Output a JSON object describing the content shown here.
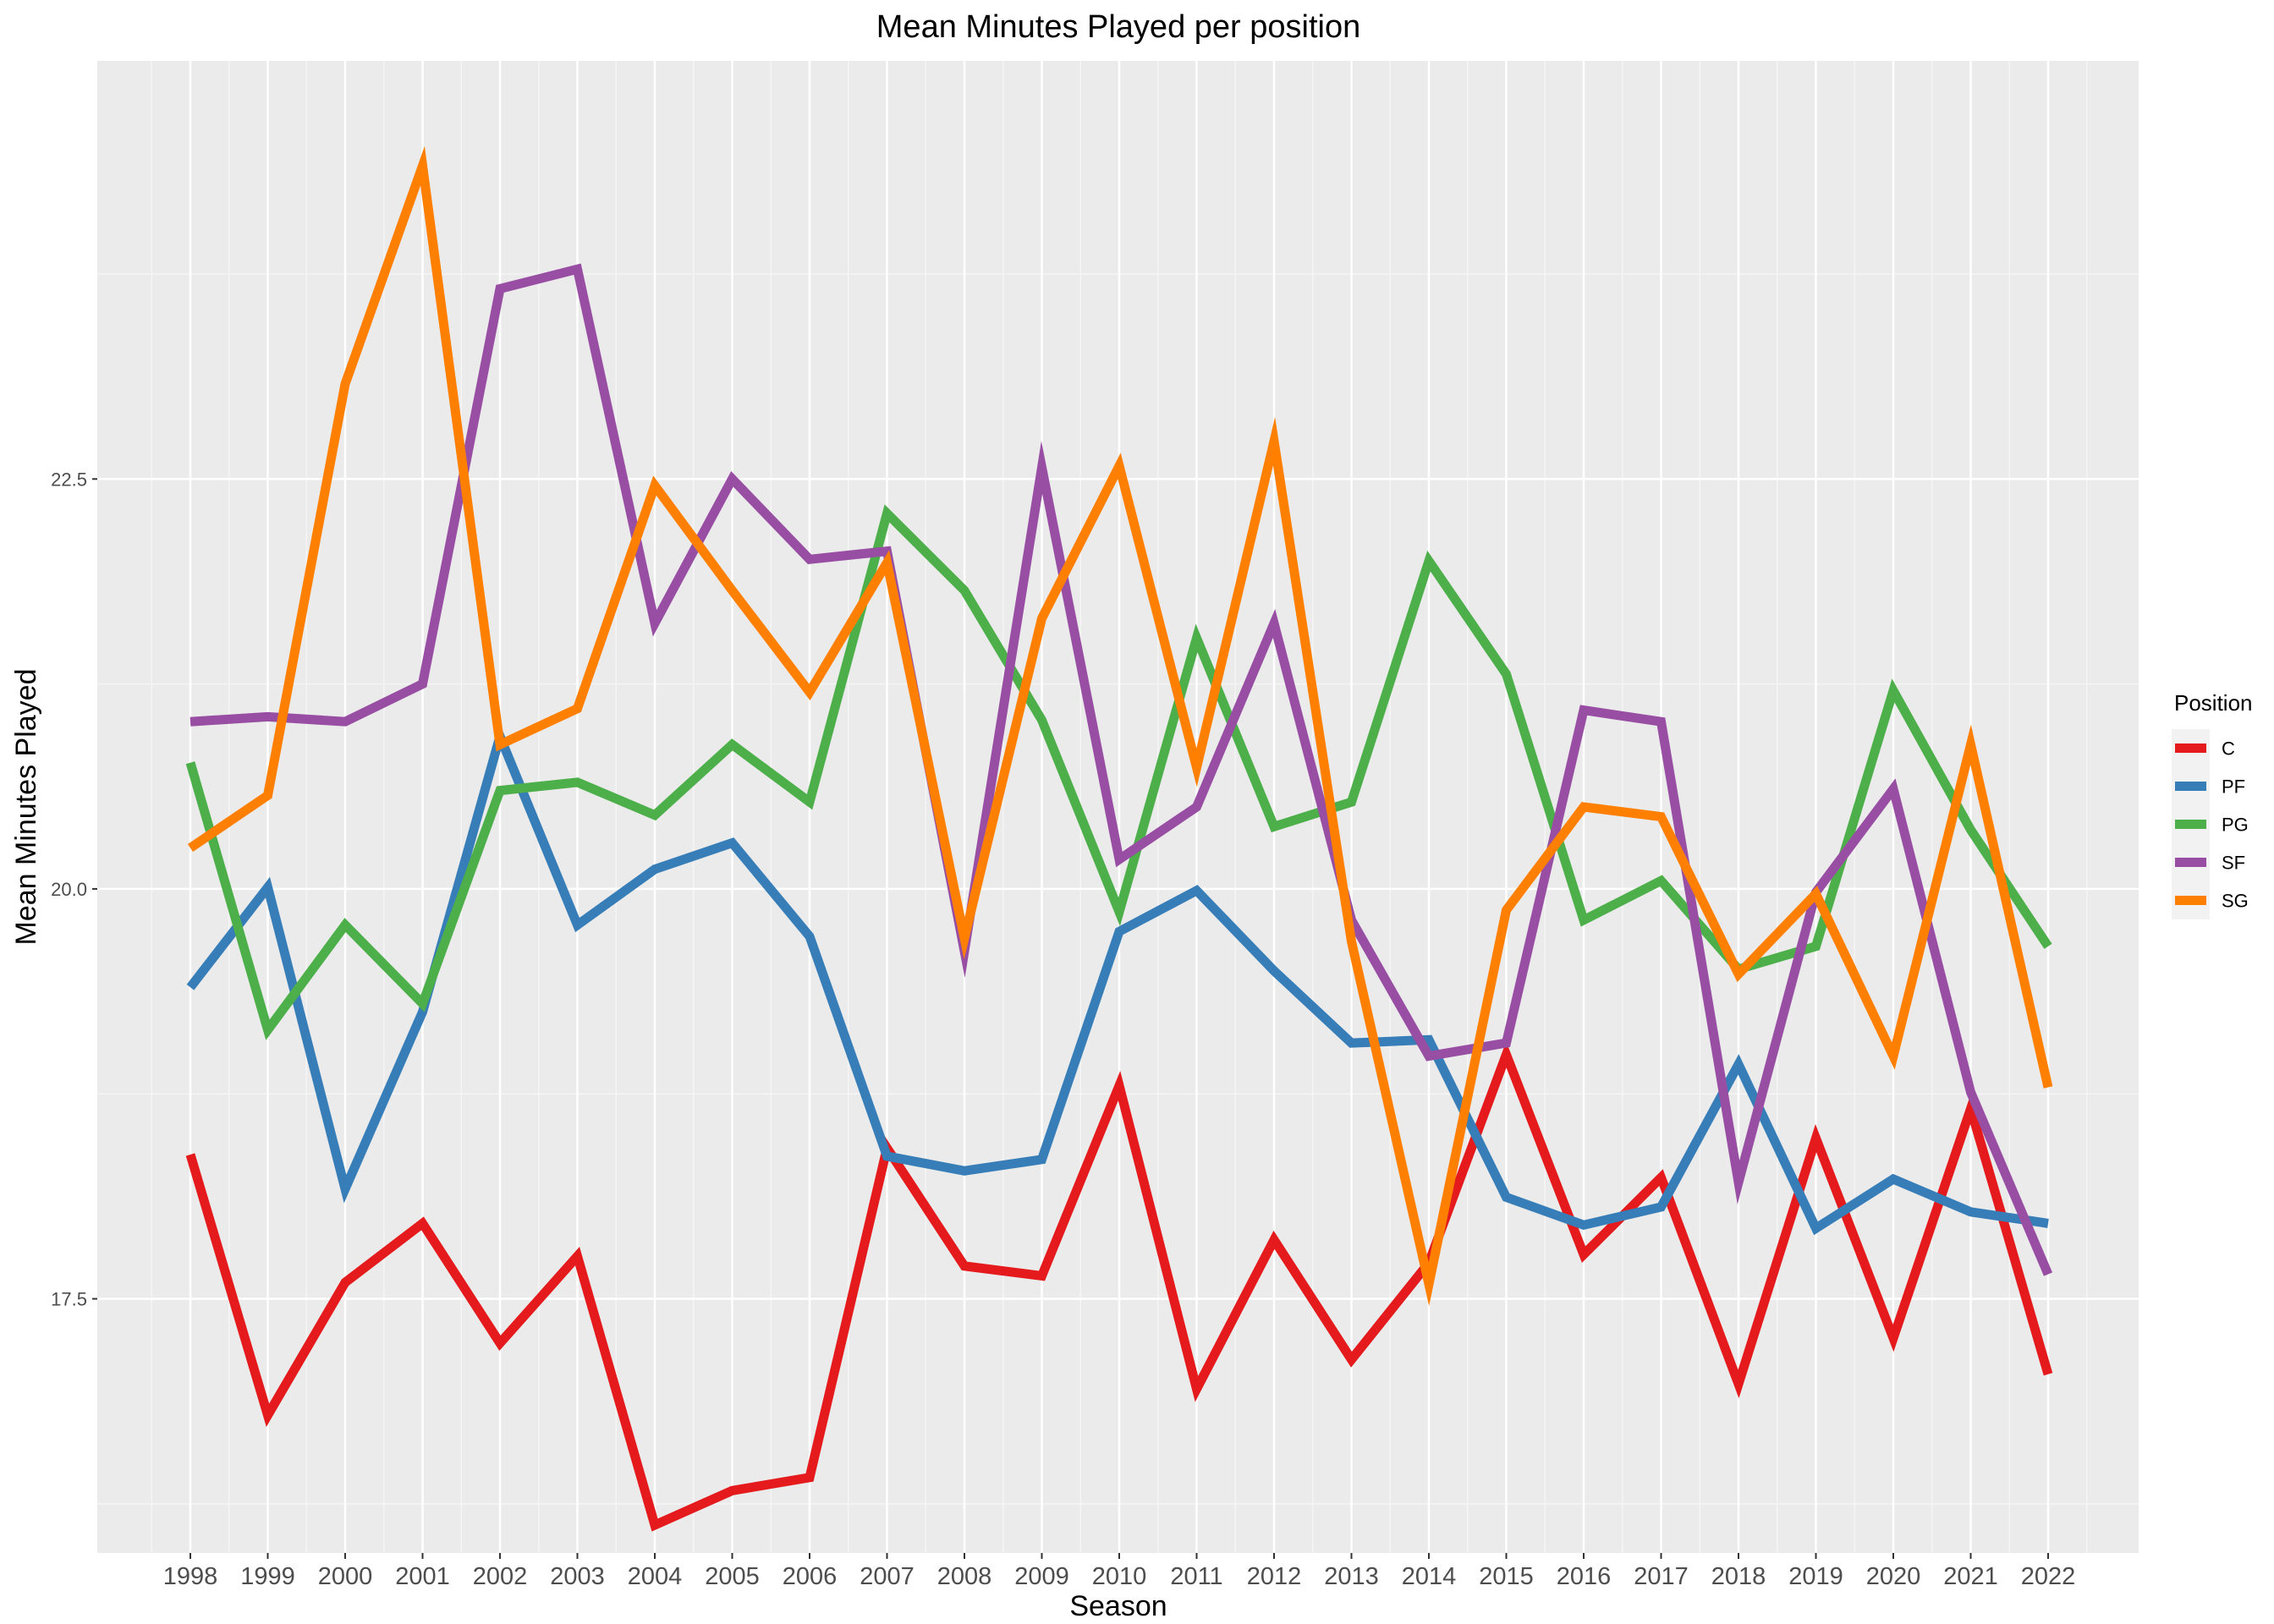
{
  "chart_data": {
    "type": "line",
    "title": "Mean Minutes Played per position",
    "xlabel": "Season",
    "ylabel": "Mean Minutes Played",
    "x": [
      "1998",
      "1999",
      "2000",
      "2001",
      "2002",
      "2003",
      "2004",
      "2005",
      "2006",
      "2007",
      "2008",
      "2009",
      "2010",
      "2011",
      "2012",
      "2013",
      "2014",
      "2015",
      "2016",
      "2017",
      "2018",
      "2019",
      "2020",
      "2021",
      "2022"
    ],
    "y_ticks": [
      17.5,
      20.0,
      22.5
    ],
    "y_tick_labels": [
      "17.5",
      "20.0",
      "22.5"
    ],
    "ylim": [
      15.95,
      25.05
    ],
    "grid": true,
    "legend": {
      "title": "Position",
      "placement": "right"
    },
    "series": [
      {
        "name": "C",
        "color": "#E41A1C",
        "values": [
          18.38,
          16.79,
          17.6,
          17.96,
          17.23,
          17.76,
          16.12,
          16.33,
          16.41,
          18.42,
          17.7,
          17.64,
          18.8,
          16.95,
          17.86,
          17.13,
          17.72,
          18.99,
          17.77,
          18.24,
          16.98,
          18.48,
          17.26,
          18.66,
          17.04
        ]
      },
      {
        "name": "PF",
        "color": "#377EB8",
        "values": [
          19.4,
          20.01,
          18.17,
          19.25,
          20.93,
          19.78,
          20.12,
          20.28,
          19.71,
          18.37,
          18.28,
          18.35,
          19.74,
          19.99,
          19.5,
          19.06,
          19.08,
          18.12,
          17.95,
          18.06,
          18.93,
          17.93,
          18.23,
          18.03,
          17.96
        ]
      },
      {
        "name": "PG",
        "color": "#4DAF4A",
        "values": [
          20.77,
          19.14,
          19.78,
          19.3,
          20.6,
          20.65,
          20.45,
          20.88,
          20.53,
          22.29,
          21.82,
          21.03,
          19.86,
          21.53,
          20.38,
          20.53,
          22.0,
          21.31,
          19.81,
          20.05,
          19.51,
          19.65,
          21.21,
          20.36,
          19.65
        ]
      },
      {
        "name": "SF",
        "color": "#984EA3",
        "values": [
          21.02,
          21.05,
          21.02,
          21.25,
          23.66,
          23.78,
          21.62,
          22.5,
          22.01,
          22.06,
          19.62,
          22.57,
          20.18,
          20.5,
          21.62,
          19.81,
          18.98,
          19.06,
          21.09,
          21.02,
          18.21,
          19.98,
          20.61,
          18.76,
          17.65
        ]
      },
      {
        "name": "SG",
        "color": "#FF7F00",
        "values": [
          20.25,
          20.57,
          23.08,
          24.41,
          20.88,
          21.1,
          22.46,
          21.82,
          21.2,
          21.99,
          19.7,
          21.65,
          22.58,
          20.74,
          22.73,
          19.68,
          17.59,
          19.87,
          20.5,
          20.44,
          19.48,
          19.97,
          18.98,
          20.88,
          18.79
        ]
      }
    ]
  }
}
